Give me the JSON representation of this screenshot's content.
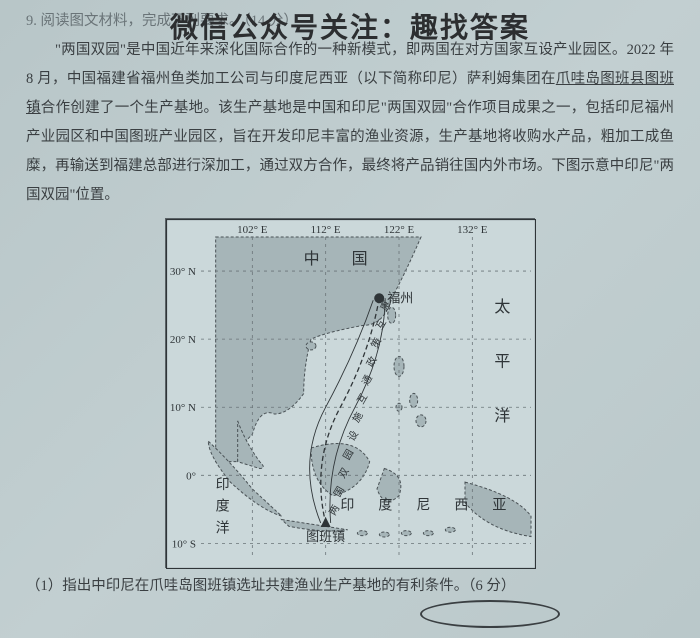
{
  "watermark": "微信公众号关注：趣找答案",
  "question_number": "9.",
  "question_head": "阅读图文材料，完成下列要求。（14 分）",
  "body_text": "\"两国双园\"是中国近年来深化国际合作的一种新模式，即两国在对方国家互设产业园区。2022 年 8 月，中国福建省福州鱼类加工公司与印度尼西亚（以下简称印尼）萨利姆集团在爪哇岛图班县图班镇合作创建了一个生产基地。该生产基地是中国和印尼\"两国双园\"合作项目成果之一，包括印尼福州产业园区和中国图班产业园区，旨在开发印尼丰富的渔业资源，生产基地将收购水产品，粗加工成鱼糜，再输送到福建总部进行深加工，通过双方合作，最终将产品销往国内外市场。下图示意中印尼\"两国双园\"位置。",
  "sub_question": "（1）指出中印尼在爪哇岛图班镇选址共建渔业生产基地的有利条件。（6 分）",
  "map": {
    "lon_labels": [
      "102° E",
      "112° E",
      "122° E",
      "132° E"
    ],
    "lat_labels": [
      "30° N",
      "20° N",
      "10° N",
      "0°",
      "10° S"
    ],
    "country_cn": "中　国",
    "city_fuzhou": "福州",
    "city_tuban": "图班镇",
    "ocean_pacific_1": "太",
    "ocean_pacific_2": "平",
    "ocean_pacific_3": "洋",
    "ocean_indian_1": "印",
    "ocean_indian_2": "度",
    "ocean_indian_3": "洋",
    "indonesia": "印　度　尼　西　亚",
    "route_text": "两 国 双 园 设 施 互 通 政 策 互 惠",
    "colors": {
      "sea": "#cbd8da",
      "land": "#a6b5b8",
      "border_dash": "#4a5256",
      "grid": "#6a7478",
      "text": "#2f3538"
    }
  }
}
